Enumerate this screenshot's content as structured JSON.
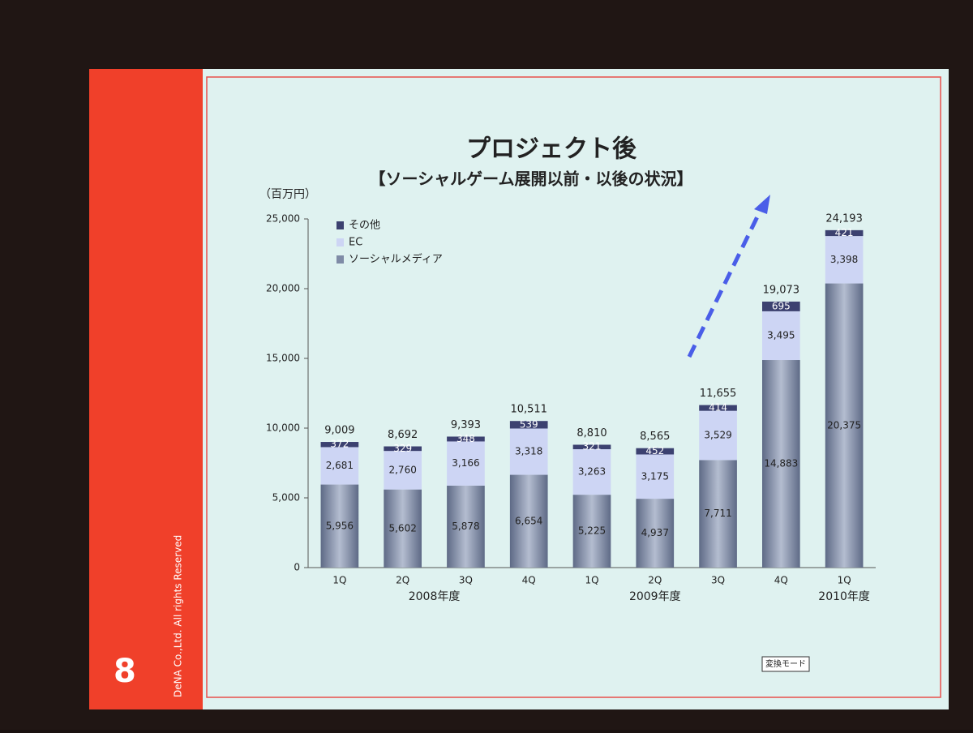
{
  "chart_data": {
    "type": "stacked_bar",
    "title": "プロジェクト後",
    "subtitle": "【ソーシャルゲーム展開以前・以後の状況】",
    "y_axis_label": "（百万円）",
    "categories": [
      "1Q",
      "2Q",
      "3Q",
      "4Q",
      "1Q",
      "2Q",
      "3Q",
      "4Q",
      "1Q"
    ],
    "groups": [
      "2008年度",
      "2009年度",
      "2010年度"
    ],
    "series": [
      {
        "name": "ソーシャルメディア",
        "color": "#7f8ba6",
        "values": [
          5956,
          5602,
          5878,
          6654,
          5225,
          4937,
          7711,
          14883,
          20375
        ],
        "value_labels": [
          "5,956",
          "5,602",
          "5,878",
          "6,654",
          "5,225",
          "4,937",
          "7,711",
          "14,883",
          "20,375"
        ]
      },
      {
        "name": "EC",
        "color": "#cdd5f4",
        "values": [
          2681,
          2760,
          3166,
          3318,
          3263,
          3175,
          3529,
          3495,
          3398
        ],
        "value_labels": [
          "2,681",
          "2,760",
          "3,166",
          "3,318",
          "3,263",
          "3,175",
          "3,529",
          "3,495",
          "3,398"
        ]
      },
      {
        "name": "その他",
        "color": "#3c4170",
        "values": [
          372,
          329,
          348,
          539,
          321,
          452,
          414,
          695,
          421
        ]
      }
    ],
    "totals": {
      "values": [
        9009,
        8692,
        9393,
        10511,
        8810,
        8565,
        11655,
        19073,
        24193
      ],
      "value_labels": [
        "9,009",
        "8,692",
        "9,393",
        "10,511",
        "8,810",
        "8,565",
        "11,655",
        "19,073",
        "24,193"
      ]
    },
    "ylim": [
      0,
      25000
    ],
    "yticks": [
      0,
      {
        "value": 5000,
        "label": "5,000"
      },
      {
        "value": 10000,
        "label": "10,000"
      },
      {
        "value": 15000,
        "label": "15,000"
      },
      {
        "value": 20000,
        "label": "20,000"
      },
      {
        "value": 25000,
        "label": "25,000"
      }
    ],
    "legend": "top-left"
  },
  "slide": {
    "page_number": "8",
    "copyright": "DeNA Co.,Ltd. All rights Reserved",
    "mode_button": "変換モード"
  }
}
